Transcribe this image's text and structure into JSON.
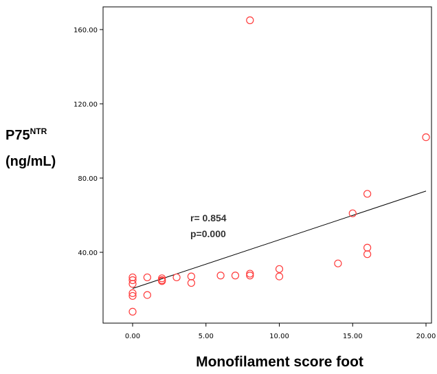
{
  "chart_data": {
    "type": "scatter",
    "title": "",
    "xlabel": "Monofilament score foot",
    "ylabel": {
      "main": "P75",
      "superscript": "NTR",
      "unit": "(ng/mL)"
    },
    "xlim": [
      0,
      20
    ],
    "ylim": [
      0,
      170
    ],
    "x_ticks": [
      0,
      5,
      10,
      15,
      20
    ],
    "x_tick_labels": [
      "0.00",
      "5.00",
      "10.00",
      "15.00",
      "20.00"
    ],
    "y_ticks": [
      40,
      80,
      120,
      160
    ],
    "y_tick_labels": [
      "40.00",
      "80.00",
      "120.00",
      "160.00"
    ],
    "grid": false,
    "point_color": "#ff3b3b",
    "line_color": "#000000",
    "points": [
      {
        "x": 0,
        "y": 26.5
      },
      {
        "x": 0,
        "y": 25
      },
      {
        "x": 0,
        "y": 23
      },
      {
        "x": 0,
        "y": 18
      },
      {
        "x": 0,
        "y": 16.5
      },
      {
        "x": 0,
        "y": 8
      },
      {
        "x": 1,
        "y": 26.5
      },
      {
        "x": 1,
        "y": 17
      },
      {
        "x": 2,
        "y": 26
      },
      {
        "x": 2,
        "y": 25
      },
      {
        "x": 2,
        "y": 24.5
      },
      {
        "x": 3,
        "y": 26.5
      },
      {
        "x": 4,
        "y": 27
      },
      {
        "x": 4,
        "y": 23.5
      },
      {
        "x": 6,
        "y": 27.5
      },
      {
        "x": 7,
        "y": 27.5
      },
      {
        "x": 8,
        "y": 28.5
      },
      {
        "x": 8,
        "y": 27.5
      },
      {
        "x": 8,
        "y": 165
      },
      {
        "x": 10,
        "y": 31
      },
      {
        "x": 10,
        "y": 27
      },
      {
        "x": 14,
        "y": 34
      },
      {
        "x": 15,
        "y": 61
      },
      {
        "x": 16,
        "y": 71.5
      },
      {
        "x": 16,
        "y": 42.5
      },
      {
        "x": 16,
        "y": 39
      },
      {
        "x": 20,
        "y": 102
      }
    ],
    "fit_line": {
      "x": [
        0,
        20
      ],
      "y": [
        20.5,
        73
      ]
    },
    "annotations": [
      "r= 0.854",
      "p=0.000"
    ]
  }
}
